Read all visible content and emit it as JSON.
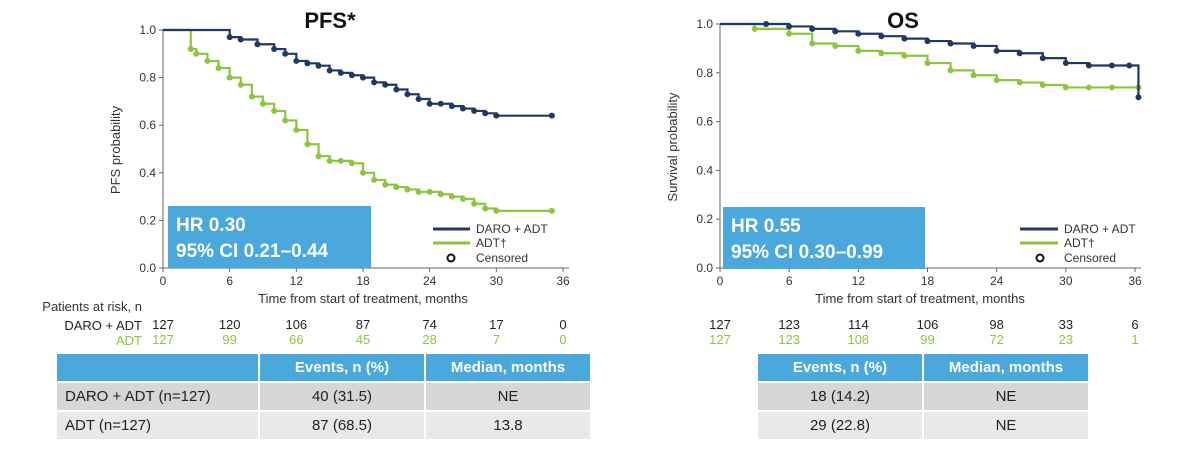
{
  "colors": {
    "daro": "#1f3864",
    "adt": "#8cc63f",
    "hr_box": "#4aa8dd",
    "table_header": "#4aa8dd"
  },
  "chart_data": [
    {
      "type": "line",
      "title": "PFS*",
      "xlabel": "Time from start of treatment, months",
      "ylabel": "PFS probability",
      "xlim": [
        0,
        36
      ],
      "ylim": [
        0.0,
        1.0
      ],
      "xticks": [
        "0",
        "6",
        "12",
        "18",
        "24",
        "30",
        "36"
      ],
      "yticks": [
        "0.0",
        "0.2",
        "0.4",
        "0.6",
        "0.8",
        "1.0"
      ],
      "hr_line1": "HR 0.30",
      "hr_line2": "95% CI 0.21–0.44",
      "legend": [
        "DARO + ADT",
        "ADT†",
        "Censored"
      ],
      "legend_position": "bottom-right",
      "series": [
        {
          "name": "DARO + ADT",
          "color": "#1f3864",
          "x": [
            0,
            6,
            7,
            8.5,
            10,
            11,
            12,
            13,
            14,
            15,
            16,
            17,
            18,
            19,
            20,
            21,
            22,
            23,
            24,
            25,
            26,
            27,
            28,
            29,
            30,
            35
          ],
          "y": [
            1.0,
            0.97,
            0.96,
            0.94,
            0.92,
            0.9,
            0.87,
            0.86,
            0.85,
            0.83,
            0.82,
            0.81,
            0.8,
            0.78,
            0.77,
            0.75,
            0.73,
            0.71,
            0.69,
            0.69,
            0.68,
            0.67,
            0.66,
            0.65,
            0.64,
            0.64
          ]
        },
        {
          "name": "ADT†",
          "color": "#8cc63f",
          "x": [
            0,
            2.5,
            3,
            4,
            5,
            6,
            7,
            8,
            9,
            10,
            11,
            12,
            13,
            14,
            15,
            16,
            17,
            18,
            19,
            20,
            21,
            22,
            23,
            24,
            25,
            26,
            27,
            28,
            29,
            30,
            35
          ],
          "y": [
            1.0,
            0.92,
            0.9,
            0.87,
            0.84,
            0.8,
            0.77,
            0.72,
            0.69,
            0.66,
            0.62,
            0.58,
            0.52,
            0.47,
            0.45,
            0.45,
            0.44,
            0.4,
            0.37,
            0.35,
            0.34,
            0.33,
            0.32,
            0.32,
            0.31,
            0.3,
            0.29,
            0.27,
            0.25,
            0.24,
            0.24
          ]
        }
      ],
      "at_risk_title": "Patients at risk, n",
      "at_risk": [
        {
          "name": "DARO + ADT",
          "values": [
            "127",
            "120",
            "106",
            "87",
            "74",
            "17",
            "0"
          ]
        },
        {
          "name": "ADT",
          "values": [
            "127",
            "99",
            "66",
            "45",
            "28",
            "7",
            "0"
          ]
        }
      ]
    },
    {
      "type": "line",
      "title": "OS",
      "xlabel": "Time from start of treatment, months",
      "ylabel": "Survival probability",
      "xlim": [
        0,
        36
      ],
      "ylim": [
        0.0,
        1.0
      ],
      "xticks": [
        "0",
        "6",
        "12",
        "18",
        "24",
        "30",
        "36"
      ],
      "yticks": [
        "0.0",
        "0.2",
        "0.4",
        "0.6",
        "0.8",
        "1.0"
      ],
      "hr_line1": "HR 0.55",
      "hr_line2": "95% CI 0.30–0.99",
      "legend": [
        "DARO + ADT",
        "ADT†",
        "Censored"
      ],
      "legend_position": "bottom-right",
      "series": [
        {
          "name": "DARO + ADT",
          "color": "#1f3864",
          "x": [
            0,
            4,
            6,
            8,
            10,
            12,
            14,
            16,
            18,
            20,
            22,
            24,
            26,
            28,
            30,
            32,
            34,
            35.5,
            36.3
          ],
          "y": [
            1.0,
            1.0,
            0.99,
            0.98,
            0.97,
            0.96,
            0.95,
            0.94,
            0.93,
            0.92,
            0.91,
            0.89,
            0.88,
            0.86,
            0.84,
            0.83,
            0.83,
            0.83,
            0.7
          ]
        },
        {
          "name": "ADT†",
          "color": "#8cc63f",
          "x": [
            0,
            3,
            6,
            8,
            10,
            12,
            14,
            16,
            18,
            20,
            22,
            24,
            26,
            28,
            30,
            32,
            34,
            36.3
          ],
          "y": [
            1.0,
            0.98,
            0.96,
            0.92,
            0.91,
            0.89,
            0.88,
            0.87,
            0.84,
            0.81,
            0.79,
            0.77,
            0.76,
            0.75,
            0.74,
            0.74,
            0.74,
            0.74
          ]
        }
      ],
      "at_risk": [
        {
          "name": "DARO + ADT",
          "values": [
            "127",
            "123",
            "114",
            "106",
            "98",
            "33",
            "6"
          ]
        },
        {
          "name": "ADT",
          "values": [
            "127",
            "123",
            "108",
            "99",
            "72",
            "23",
            "1"
          ]
        }
      ]
    }
  ],
  "pfs_table": {
    "header": [
      "",
      "Events, n (%)",
      "Median, months"
    ],
    "rows": [
      {
        "label": "DARO + ADT (n=127)",
        "events": "40 (31.5)",
        "median": "NE"
      },
      {
        "label": "ADT (n=127)",
        "events": "87 (68.5)",
        "median": "13.8"
      }
    ]
  },
  "os_table": {
    "header": [
      "Events, n (%)",
      "Median, months"
    ],
    "rows": [
      {
        "events": "18 (14.2)",
        "median": "NE"
      },
      {
        "events": "29 (22.8)",
        "median": "NE"
      }
    ]
  }
}
